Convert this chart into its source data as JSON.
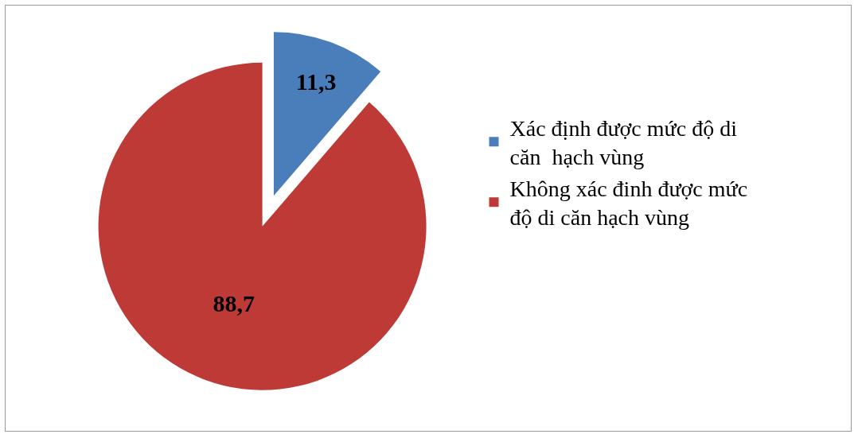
{
  "chart_data": {
    "type": "pie",
    "categories": [
      "Xác định được mức độ di căn  hạch vùng",
      "Không xác đinh được mức độ di căn hạch vùng"
    ],
    "values": [
      11.3,
      88.7
    ],
    "colors": [
      "#4a7ebb",
      "#be3a37"
    ],
    "value_labels": [
      "11,3",
      "88,7"
    ],
    "legend": "right"
  }
}
